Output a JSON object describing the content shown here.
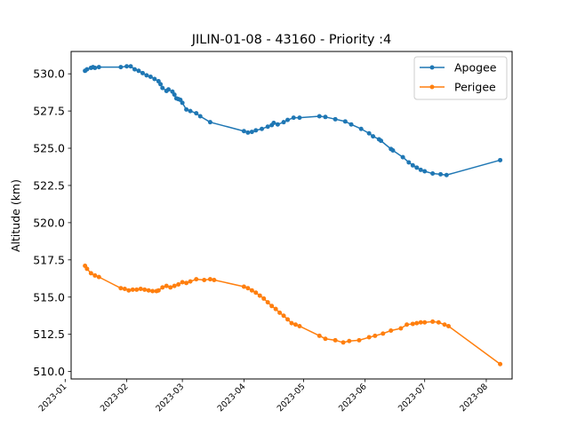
{
  "chart_data": {
    "type": "line",
    "title": "JILIN-01-08 - 43160 - Priority :4",
    "xlabel": "",
    "ylabel": "Altitude (km)",
    "xlim": [
      "2023-01-04",
      "2023-08-14"
    ],
    "ylim": [
      509.5,
      531.5
    ],
    "x_ticks": [
      "2023-01",
      "2023-02",
      "2023-03",
      "2023-04",
      "2023-05",
      "2023-06",
      "2023-07",
      "2023-08"
    ],
    "y_ticks": [
      "510.0",
      "512.5",
      "515.0",
      "517.5",
      "520.0",
      "522.5",
      "525.0",
      "527.5",
      "530.0"
    ],
    "legend_position": "top-right",
    "grid": false,
    "series": [
      {
        "name": "Apogee",
        "color": "#1f77b4",
        "points": [
          [
            "2023-01-11",
            530.2
          ],
          [
            "2023-01-12",
            530.3
          ],
          [
            "2023-01-14",
            530.4
          ],
          [
            "2023-01-15",
            530.45
          ],
          [
            "2023-01-16",
            530.4
          ],
          [
            "2023-01-18",
            530.45
          ],
          [
            "2023-01-29",
            530.45
          ],
          [
            "2023-02-01",
            530.5
          ],
          [
            "2023-02-03",
            530.5
          ],
          [
            "2023-02-05",
            530.3
          ],
          [
            "2023-02-07",
            530.2
          ],
          [
            "2023-02-09",
            530.05
          ],
          [
            "2023-02-11",
            529.9
          ],
          [
            "2023-02-13",
            529.8
          ],
          [
            "2023-02-15",
            529.65
          ],
          [
            "2023-02-17",
            529.5
          ],
          [
            "2023-02-18",
            529.3
          ],
          [
            "2023-02-19",
            529.05
          ],
          [
            "2023-02-21",
            528.85
          ],
          [
            "2023-02-22",
            528.95
          ],
          [
            "2023-02-24",
            528.8
          ],
          [
            "2023-02-25",
            528.6
          ],
          [
            "2023-02-26",
            528.35
          ],
          [
            "2023-02-27",
            528.3
          ],
          [
            "2023-02-28",
            528.25
          ],
          [
            "2023-03-01",
            528.05
          ],
          [
            "2023-03-03",
            527.6
          ],
          [
            "2023-03-05",
            527.5
          ],
          [
            "2023-03-08",
            527.35
          ],
          [
            "2023-03-10",
            527.15
          ],
          [
            "2023-03-15",
            526.75
          ],
          [
            "2023-04-01",
            526.15
          ],
          [
            "2023-04-03",
            526.05
          ],
          [
            "2023-04-05",
            526.1
          ],
          [
            "2023-04-07",
            526.2
          ],
          [
            "2023-04-10",
            526.3
          ],
          [
            "2023-04-13",
            526.45
          ],
          [
            "2023-04-15",
            526.55
          ],
          [
            "2023-04-16",
            526.7
          ],
          [
            "2023-04-18",
            526.6
          ],
          [
            "2023-04-21",
            526.75
          ],
          [
            "2023-04-23",
            526.9
          ],
          [
            "2023-04-26",
            527.05
          ],
          [
            "2023-04-29",
            527.05
          ],
          [
            "2023-05-09",
            527.15
          ],
          [
            "2023-05-12",
            527.1
          ],
          [
            "2023-05-17",
            526.95
          ],
          [
            "2023-05-22",
            526.8
          ],
          [
            "2023-05-25",
            526.6
          ],
          [
            "2023-05-30",
            526.3
          ],
          [
            "2023-06-03",
            526.0
          ],
          [
            "2023-06-05",
            525.8
          ],
          [
            "2023-06-08",
            525.6
          ],
          [
            "2023-06-09",
            525.5
          ],
          [
            "2023-06-14",
            524.95
          ],
          [
            "2023-06-15",
            524.85
          ],
          [
            "2023-06-20",
            524.4
          ],
          [
            "2023-06-23",
            524.05
          ],
          [
            "2023-06-25",
            523.85
          ],
          [
            "2023-06-27",
            523.7
          ],
          [
            "2023-06-29",
            523.55
          ],
          [
            "2023-07-01",
            523.45
          ],
          [
            "2023-07-05",
            523.3
          ],
          [
            "2023-07-09",
            523.25
          ],
          [
            "2023-07-12",
            523.2
          ],
          [
            "2023-08-08",
            524.2
          ]
        ]
      },
      {
        "name": "Perigee",
        "color": "#ff7f0e",
        "points": [
          [
            "2023-01-11",
            517.1
          ],
          [
            "2023-01-12",
            516.9
          ],
          [
            "2023-01-14",
            516.6
          ],
          [
            "2023-01-16",
            516.45
          ],
          [
            "2023-01-18",
            516.35
          ],
          [
            "2023-01-29",
            515.6
          ],
          [
            "2023-01-31",
            515.55
          ],
          [
            "2023-02-02",
            515.45
          ],
          [
            "2023-02-04",
            515.5
          ],
          [
            "2023-02-06",
            515.5
          ],
          [
            "2023-02-08",
            515.55
          ],
          [
            "2023-02-10",
            515.5
          ],
          [
            "2023-02-12",
            515.45
          ],
          [
            "2023-02-14",
            515.4
          ],
          [
            "2023-02-16",
            515.4
          ],
          [
            "2023-02-17",
            515.45
          ],
          [
            "2023-02-19",
            515.65
          ],
          [
            "2023-02-21",
            515.75
          ],
          [
            "2023-02-23",
            515.65
          ],
          [
            "2023-02-25",
            515.75
          ],
          [
            "2023-02-27",
            515.85
          ],
          [
            "2023-03-01",
            516.0
          ],
          [
            "2023-03-03",
            515.95
          ],
          [
            "2023-03-05",
            516.05
          ],
          [
            "2023-03-08",
            516.2
          ],
          [
            "2023-03-12",
            516.15
          ],
          [
            "2023-03-15",
            516.2
          ],
          [
            "2023-03-17",
            516.15
          ],
          [
            "2023-04-01",
            515.7
          ],
          [
            "2023-04-03",
            515.6
          ],
          [
            "2023-04-05",
            515.45
          ],
          [
            "2023-04-07",
            515.3
          ],
          [
            "2023-04-09",
            515.1
          ],
          [
            "2023-04-11",
            514.9
          ],
          [
            "2023-04-13",
            514.65
          ],
          [
            "2023-04-15",
            514.4
          ],
          [
            "2023-04-17",
            514.2
          ],
          [
            "2023-04-19",
            513.95
          ],
          [
            "2023-04-21",
            513.75
          ],
          [
            "2023-04-23",
            513.5
          ],
          [
            "2023-04-25",
            513.25
          ],
          [
            "2023-04-27",
            513.15
          ],
          [
            "2023-04-29",
            513.05
          ],
          [
            "2023-05-09",
            512.4
          ],
          [
            "2023-05-12",
            512.2
          ],
          [
            "2023-05-17",
            512.1
          ],
          [
            "2023-05-21",
            511.95
          ],
          [
            "2023-05-24",
            512.05
          ],
          [
            "2023-05-29",
            512.1
          ],
          [
            "2023-06-03",
            512.3
          ],
          [
            "2023-06-06",
            512.4
          ],
          [
            "2023-06-10",
            512.55
          ],
          [
            "2023-06-14",
            512.75
          ],
          [
            "2023-06-19",
            512.9
          ],
          [
            "2023-06-22",
            513.15
          ],
          [
            "2023-06-25",
            513.2
          ],
          [
            "2023-06-27",
            513.25
          ],
          [
            "2023-06-29",
            513.3
          ],
          [
            "2023-07-01",
            513.3
          ],
          [
            "2023-07-05",
            513.35
          ],
          [
            "2023-07-08",
            513.3
          ],
          [
            "2023-07-11",
            513.15
          ],
          [
            "2023-07-13",
            513.05
          ],
          [
            "2023-08-08",
            510.5
          ]
        ]
      }
    ]
  }
}
